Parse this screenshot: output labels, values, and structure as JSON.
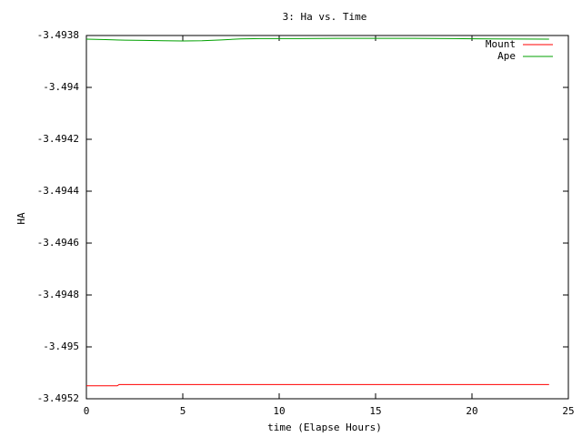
{
  "chart_data": {
    "type": "line",
    "title": "3: Ha vs. Time",
    "xlabel": "time (Elapse Hours)",
    "ylabel": "HA",
    "series": [
      {
        "name": "Mount",
        "color": "#ff0000",
        "x": [
          0,
          1.6,
          1.7,
          24
        ],
        "values": [
          -3.49515,
          -3.49515,
          -3.495145,
          -3.495145
        ]
      },
      {
        "name": "Ape",
        "color": "#00a000",
        "x": [
          0,
          1,
          2,
          3,
          4,
          5,
          6,
          7,
          8,
          9,
          11,
          13,
          15,
          17,
          19,
          21,
          24
        ],
        "values": [
          -3.493814,
          -3.493816,
          -3.493818,
          -3.493819,
          -3.49382,
          -3.493821,
          -3.49382,
          -3.493817,
          -3.493813,
          -3.493812,
          -3.493812,
          -3.493811,
          -3.493811,
          -3.493811,
          -3.493812,
          -3.493813,
          -3.493814
        ]
      }
    ],
    "xlim": [
      0,
      25
    ],
    "xticks": [
      0,
      5,
      10,
      15,
      20,
      25
    ],
    "ylim": [
      -3.4952,
      -3.4938
    ],
    "yticks": [
      -3.4952,
      -3.495,
      -3.4948,
      -3.4946,
      -3.4944,
      -3.4942,
      -3.494,
      -3.4938
    ],
    "legend": "top-right"
  }
}
